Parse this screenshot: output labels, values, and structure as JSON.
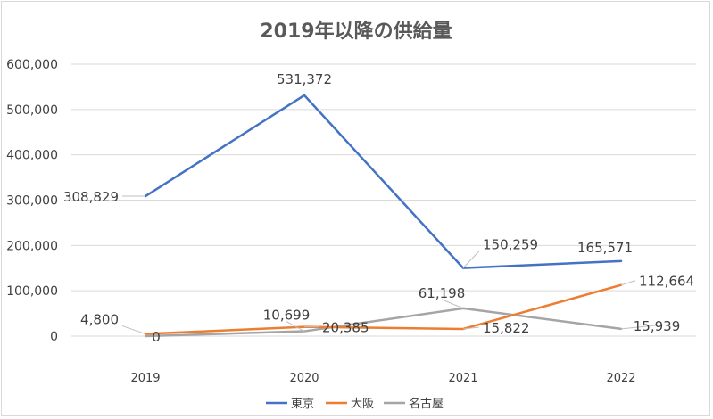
{
  "chart_data": {
    "type": "line",
    "title": "2019年以降の供給量",
    "categories": [
      "2019",
      "2020",
      "2021",
      "2022"
    ],
    "ylim": [
      0,
      600000
    ],
    "yticks": [
      0,
      100000,
      200000,
      300000,
      400000,
      500000,
      600000
    ],
    "ytick_labels": [
      "0",
      "100,000",
      "200,000",
      "300,000",
      "400,000",
      "500,000",
      "600,000"
    ],
    "grid": true,
    "legend_position": "bottom",
    "series": [
      {
        "name": "東京",
        "color": "#4472c4",
        "values": [
          308829,
          531372,
          150259,
          165571
        ],
        "labels": [
          "308,829",
          "531,372",
          "150,259",
          "165,571"
        ]
      },
      {
        "name": "大阪",
        "color": "#ed7d31",
        "values": [
          4800,
          20385,
          15822,
          112664
        ],
        "labels": [
          "4,800",
          "20,385",
          "15,822",
          "112,664"
        ]
      },
      {
        "name": "名古屋",
        "color": "#a5a5a5",
        "values": [
          0,
          10699,
          61198,
          15939
        ],
        "labels": [
          "0",
          "10,699",
          "61,198",
          "15,939"
        ]
      }
    ]
  }
}
